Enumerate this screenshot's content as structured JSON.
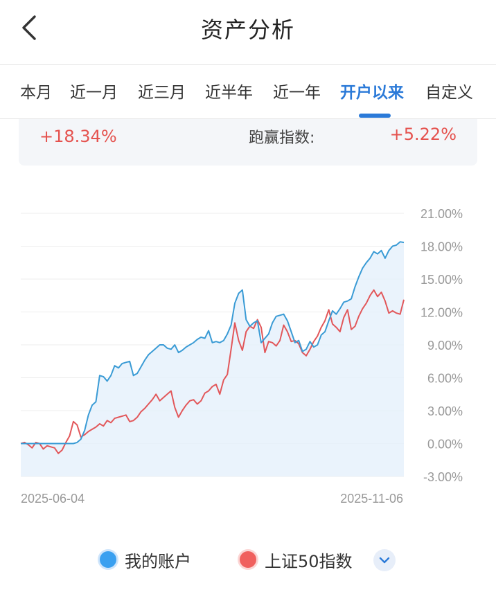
{
  "header": {
    "title": "资产分析",
    "back_icon": "chevron-left-icon"
  },
  "tabs": [
    {
      "label": "本月",
      "active": false
    },
    {
      "label": "近一月",
      "active": false
    },
    {
      "label": "近三月",
      "active": false
    },
    {
      "label": "近半年",
      "active": false
    },
    {
      "label": "近一年",
      "active": false
    },
    {
      "label": "开户以来",
      "active": true
    },
    {
      "label": "自定义",
      "active": false
    }
  ],
  "summary": {
    "return_value": "+18.34%",
    "excess_label": "跑赢指数:",
    "excess_value": "+5.22%"
  },
  "colors": {
    "accent": "#2b7ad8",
    "gain": "#e5524e",
    "account_line": "#3a9bd5",
    "index_line": "#e2575a"
  },
  "chart_data": {
    "type": "line",
    "x_start_label": "2025-06-04",
    "x_end_label": "2025-11-06",
    "ylim": [
      -3,
      21
    ],
    "yticks": [
      "21.00%",
      "18.00%",
      "15.00%",
      "12.00%",
      "9.00%",
      "6.00%",
      "3.00%",
      "0.00%",
      "-3.00%"
    ],
    "series": [
      {
        "name": "我的账户",
        "color": "#3a9bd5",
        "values": [
          0.0,
          0.0,
          0.0,
          0.0,
          0.0,
          0.0,
          0.0,
          0.0,
          0.0,
          0.0,
          0.0,
          0.0,
          0.0,
          0.0,
          0.0,
          0.1,
          0.4,
          1.2,
          2.6,
          3.5,
          3.8,
          6.2,
          6.1,
          5.7,
          6.2,
          7.1,
          6.9,
          7.3,
          7.4,
          7.5,
          6.2,
          6.4,
          7.0,
          7.6,
          8.1,
          8.4,
          8.7,
          9.0,
          9.0,
          8.7,
          8.6,
          9.0,
          8.3,
          8.5,
          8.8,
          9.0,
          9.2,
          9.5,
          9.7,
          9.6,
          10.3,
          9.2,
          9.3,
          9.2,
          9.4,
          10.0,
          10.8,
          12.8,
          13.7,
          14.0,
          11.3,
          10.7,
          11.0,
          11.2,
          9.2,
          9.6,
          10.0,
          11.0,
          11.6,
          11.7,
          11.8,
          11.2,
          10.2,
          9.2,
          9.4,
          8.4,
          8.6,
          9.3,
          8.8,
          9.0,
          9.9,
          10.2,
          11.2,
          12.1,
          11.8,
          12.3,
          12.9,
          13.0,
          13.2,
          14.3,
          15.2,
          16.0,
          16.5,
          16.9,
          17.5,
          17.3,
          17.6,
          16.9,
          17.6,
          18.0,
          18.1,
          18.4,
          18.34
        ]
      },
      {
        "name": "上证50指数",
        "color": "#e2575a",
        "values": [
          0.0,
          0.1,
          -0.1,
          -0.4,
          0.1,
          0.0,
          -0.5,
          -0.2,
          -0.3,
          -0.4,
          -0.9,
          -0.6,
          0.1,
          0.7,
          2.0,
          1.7,
          0.6,
          0.8,
          1.1,
          1.3,
          1.5,
          1.8,
          1.6,
          2.1,
          1.9,
          2.3,
          2.4,
          2.5,
          2.6,
          2.0,
          2.1,
          2.4,
          2.9,
          3.2,
          3.6,
          4.0,
          4.5,
          3.9,
          4.2,
          4.5,
          4.8,
          3.3,
          2.4,
          3.0,
          3.5,
          3.9,
          4.0,
          3.6,
          3.9,
          4.6,
          4.8,
          5.2,
          5.4,
          4.5,
          5.8,
          6.3,
          8.6,
          11.0,
          9.4,
          8.5,
          10.2,
          10.7,
          10.5,
          11.3,
          10.6,
          8.3,
          9.3,
          9.2,
          8.9,
          9.4,
          10.8,
          10.2,
          9.3,
          9.4,
          9.1,
          8.3,
          8.0,
          8.6,
          9.3,
          9.8,
          10.6,
          11.2,
          12.2,
          10.9,
          10.6,
          10.2,
          11.5,
          12.2,
          10.4,
          10.7,
          11.6,
          12.3,
          12.8,
          13.5,
          14.0,
          13.4,
          13.8,
          13.0,
          11.9,
          12.1,
          11.9,
          11.8,
          13.12
        ]
      }
    ]
  }
}
